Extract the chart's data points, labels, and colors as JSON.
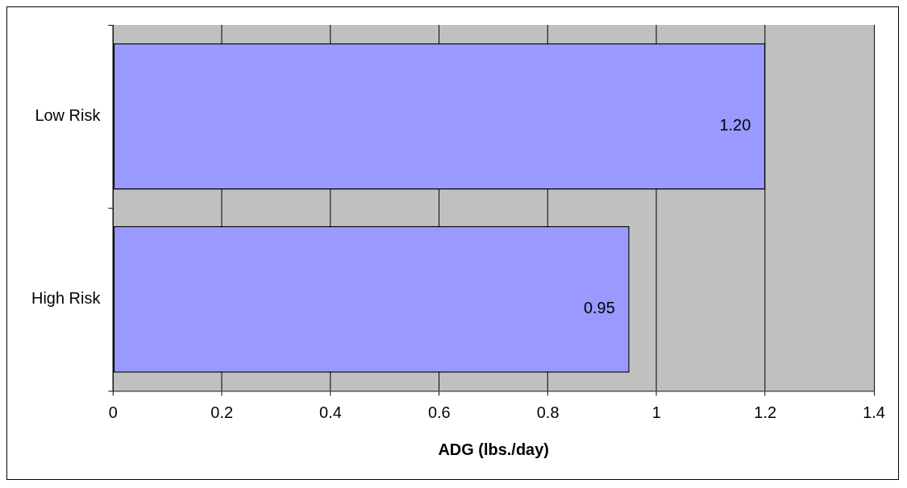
{
  "chart_data": {
    "type": "bar",
    "orientation": "horizontal",
    "xlabel": "ADG (lbs./day)",
    "categories": [
      "Low Risk",
      "High Risk"
    ],
    "values": [
      1.2,
      0.95
    ],
    "value_labels": [
      "1.20",
      "0.95"
    ],
    "color": "#9999ff",
    "xlim": [
      0,
      1.4
    ],
    "xticks": [
      0,
      0.2,
      0.4,
      0.6,
      0.8,
      1,
      1.2,
      1.4
    ],
    "grid": "x",
    "legend": false
  }
}
